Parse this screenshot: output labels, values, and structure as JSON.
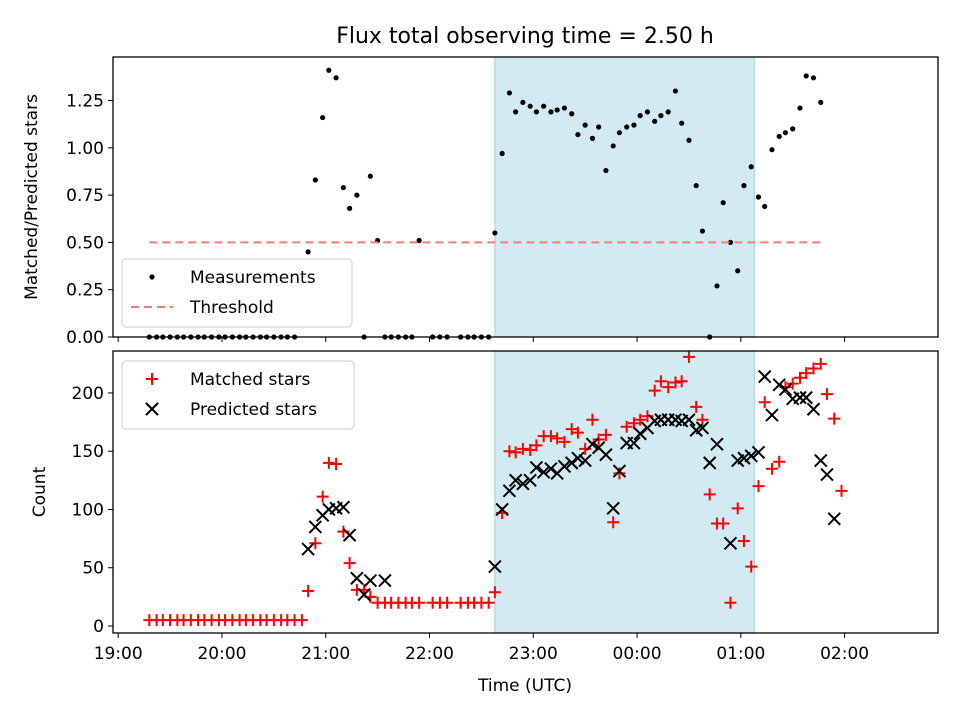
{
  "chart_data": [
    {
      "type": "scatter",
      "title": "Flux total observing time = 2.50 h",
      "xlabel": "",
      "ylabel": "Matched/Predicted stars",
      "xlim": [
        -0.05,
        7.9
      ],
      "ylim": [
        0,
        1.48
      ],
      "yticks": [
        "0.00",
        "0.25",
        "0.50",
        "0.75",
        "1.00",
        "1.25"
      ],
      "ytick_values": [
        0,
        0.25,
        0.5,
        0.75,
        1.0,
        1.25
      ],
      "shaded_span": [
        3.63,
        6.13
      ],
      "legend_position": "lower-left",
      "series": [
        {
          "name": "Measurements",
          "color": "#000000",
          "marker": "dot",
          "points": [
            [
              0.3,
              0
            ],
            [
              0.37,
              0
            ],
            [
              0.43,
              0
            ],
            [
              0.5,
              0
            ],
            [
              0.57,
              0
            ],
            [
              0.63,
              0
            ],
            [
              0.7,
              0
            ],
            [
              0.77,
              0
            ],
            [
              0.83,
              0
            ],
            [
              0.9,
              0
            ],
            [
              0.97,
              0
            ],
            [
              1.03,
              0
            ],
            [
              1.1,
              0
            ],
            [
              1.17,
              0
            ],
            [
              1.23,
              0
            ],
            [
              1.3,
              0
            ],
            [
              1.37,
              0
            ],
            [
              1.43,
              0
            ],
            [
              1.5,
              0
            ],
            [
              1.57,
              0
            ],
            [
              1.63,
              0
            ],
            [
              1.7,
              0
            ],
            [
              1.83,
              0.45
            ],
            [
              1.9,
              0.83
            ],
            [
              1.97,
              1.16
            ],
            [
              2.03,
              1.41
            ],
            [
              2.1,
              1.37
            ],
            [
              2.17,
              0.79
            ],
            [
              2.23,
              0.68
            ],
            [
              2.3,
              0.75
            ],
            [
              2.37,
              0
            ],
            [
              2.43,
              0.85
            ],
            [
              2.5,
              0.51
            ],
            [
              2.57,
              0
            ],
            [
              2.63,
              0
            ],
            [
              2.7,
              0
            ],
            [
              2.77,
              0
            ],
            [
              2.83,
              0
            ],
            [
              2.9,
              0.51
            ],
            [
              3.03,
              0
            ],
            [
              3.1,
              0
            ],
            [
              3.17,
              0
            ],
            [
              3.3,
              0
            ],
            [
              3.37,
              0
            ],
            [
              3.43,
              0
            ],
            [
              3.5,
              0
            ],
            [
              3.57,
              0
            ],
            [
              3.63,
              0.55
            ],
            [
              3.7,
              0.97
            ],
            [
              3.77,
              1.29
            ],
            [
              3.83,
              1.19
            ],
            [
              3.9,
              1.24
            ],
            [
              3.97,
              1.22
            ],
            [
              4.03,
              1.19
            ],
            [
              4.1,
              1.22
            ],
            [
              4.17,
              1.19
            ],
            [
              4.23,
              1.2
            ],
            [
              4.3,
              1.21
            ],
            [
              4.37,
              1.18
            ],
            [
              4.43,
              1.07
            ],
            [
              4.5,
              1.12
            ],
            [
              4.57,
              1.05
            ],
            [
              4.63,
              1.11
            ],
            [
              4.7,
              0.88
            ],
            [
              4.77,
              1.01
            ],
            [
              4.83,
              1.08
            ],
            [
              4.9,
              1.11
            ],
            [
              4.97,
              1.12
            ],
            [
              5.03,
              1.17
            ],
            [
              5.1,
              1.19
            ],
            [
              5.17,
              1.14
            ],
            [
              5.23,
              1.17
            ],
            [
              5.3,
              1.19
            ],
            [
              5.37,
              1.3
            ],
            [
              5.43,
              1.13
            ],
            [
              5.5,
              1.04
            ],
            [
              5.57,
              0.8
            ],
            [
              5.63,
              0.56
            ],
            [
              5.7,
              0
            ],
            [
              5.77,
              0.27
            ],
            [
              5.83,
              0.71
            ],
            [
              5.9,
              0.5
            ],
            [
              5.97,
              0.35
            ],
            [
              6.03,
              0.8
            ],
            [
              6.1,
              0.9
            ],
            [
              6.17,
              0.74
            ],
            [
              6.23,
              0.69
            ],
            [
              6.3,
              0.99
            ],
            [
              6.37,
              1.06
            ],
            [
              6.43,
              1.08
            ],
            [
              6.5,
              1.1
            ],
            [
              6.57,
              1.21
            ],
            [
              6.63,
              1.38
            ],
            [
              6.7,
              1.37
            ],
            [
              6.77,
              1.24
            ]
          ]
        },
        {
          "name": "Threshold",
          "color": "#ff7777",
          "marker": "dashed-line",
          "points": [
            [
              0.3,
              0.5
            ],
            [
              6.77,
              0.5
            ]
          ]
        }
      ]
    },
    {
      "type": "scatter",
      "title": "",
      "xlabel": "Time (UTC)",
      "ylabel": "Count",
      "xlim": [
        -0.05,
        7.9
      ],
      "ylim": [
        -6,
        236
      ],
      "yticks": [
        "0",
        "50",
        "100",
        "150",
        "200"
      ],
      "ytick_values": [
        0,
        50,
        100,
        150,
        200
      ],
      "xticks": [
        "19:00",
        "20:00",
        "21:00",
        "22:00",
        "23:00",
        "00:00",
        "01:00",
        "02:00"
      ],
      "xtick_values": [
        0,
        1,
        2,
        3,
        4,
        5,
        6,
        7
      ],
      "shaded_span": [
        3.63,
        6.13
      ],
      "legend_position": "upper-left",
      "series": [
        {
          "name": "Matched stars",
          "color": "#ff0000",
          "marker": "plus",
          "points": [
            [
              0.3,
              5
            ],
            [
              0.37,
              5
            ],
            [
              0.43,
              5
            ],
            [
              0.5,
              5
            ],
            [
              0.57,
              5
            ],
            [
              0.63,
              5
            ],
            [
              0.7,
              5
            ],
            [
              0.77,
              5
            ],
            [
              0.83,
              5
            ],
            [
              0.9,
              5
            ],
            [
              0.97,
              5
            ],
            [
              1.03,
              5
            ],
            [
              1.1,
              5
            ],
            [
              1.17,
              5
            ],
            [
              1.23,
              5
            ],
            [
              1.3,
              5
            ],
            [
              1.37,
              5
            ],
            [
              1.43,
              5
            ],
            [
              1.5,
              5
            ],
            [
              1.57,
              5
            ],
            [
              1.63,
              5
            ],
            [
              1.7,
              5
            ],
            [
              1.77,
              5
            ],
            [
              1.83,
              30
            ],
            [
              1.9,
              71
            ],
            [
              1.97,
              111
            ],
            [
              2.03,
              140
            ],
            [
              2.1,
              139
            ],
            [
              2.17,
              81
            ],
            [
              2.23,
              54
            ],
            [
              2.3,
              31
            ],
            [
              2.37,
              31
            ],
            [
              2.43,
              25
            ],
            [
              2.5,
              20
            ],
            [
              2.57,
              20
            ],
            [
              2.63,
              20
            ],
            [
              2.7,
              20
            ],
            [
              2.77,
              20
            ],
            [
              2.83,
              20
            ],
            [
              2.9,
              20
            ],
            [
              3.03,
              20
            ],
            [
              3.1,
              20
            ],
            [
              3.17,
              20
            ],
            [
              3.3,
              20
            ],
            [
              3.37,
              20
            ],
            [
              3.43,
              20
            ],
            [
              3.5,
              20
            ],
            [
              3.57,
              20
            ],
            [
              3.63,
              29
            ],
            [
              3.7,
              97
            ],
            [
              3.77,
              150
            ],
            [
              3.83,
              149
            ],
            [
              3.9,
              152
            ],
            [
              3.97,
              151
            ],
            [
              4.03,
              155
            ],
            [
              4.1,
              163
            ],
            [
              4.17,
              163
            ],
            [
              4.23,
              161
            ],
            [
              4.3,
              158
            ],
            [
              4.37,
              169
            ],
            [
              4.43,
              166
            ],
            [
              4.5,
              152
            ],
            [
              4.57,
              177
            ],
            [
              4.63,
              160
            ],
            [
              4.7,
              164
            ],
            [
              4.77,
              89
            ],
            [
              4.83,
              131
            ],
            [
              4.9,
              171
            ],
            [
              4.97,
              174
            ],
            [
              5.03,
              177
            ],
            [
              5.1,
              180
            ],
            [
              5.17,
              202
            ],
            [
              5.23,
              210
            ],
            [
              5.3,
              205
            ],
            [
              5.37,
              209
            ],
            [
              5.43,
              210
            ],
            [
              5.5,
              231
            ],
            [
              5.57,
              188
            ],
            [
              5.63,
              177
            ],
            [
              5.7,
              113
            ],
            [
              5.77,
              88
            ],
            [
              5.83,
              88
            ],
            [
              5.9,
              20
            ],
            [
              5.97,
              101
            ],
            [
              6.03,
              73
            ],
            [
              6.1,
              51
            ],
            [
              6.17,
              120
            ],
            [
              6.23,
              192
            ],
            [
              6.3,
              135
            ],
            [
              6.37,
              141
            ],
            [
              6.43,
              205
            ],
            [
              6.5,
              208
            ],
            [
              6.57,
              213
            ],
            [
              6.63,
              217
            ],
            [
              6.7,
              221
            ],
            [
              6.77,
              225
            ],
            [
              6.83,
              199
            ],
            [
              6.9,
              178
            ],
            [
              6.97,
              116
            ]
          ]
        },
        {
          "name": "Predicted stars",
          "color": "#000000",
          "marker": "x",
          "points": [
            [
              1.83,
              66
            ],
            [
              1.9,
              85
            ],
            [
              1.97,
              95
            ],
            [
              2.03,
              100
            ],
            [
              2.1,
              101
            ],
            [
              2.17,
              102
            ],
            [
              2.23,
              78
            ],
            [
              2.3,
              41
            ],
            [
              2.37,
              27
            ],
            [
              2.43,
              39
            ],
            [
              2.57,
              39
            ],
            [
              3.63,
              51
            ],
            [
              3.7,
              100
            ],
            [
              3.77,
              116
            ],
            [
              3.83,
              125
            ],
            [
              3.9,
              122
            ],
            [
              3.97,
              125
            ],
            [
              4.03,
              136
            ],
            [
              4.1,
              132
            ],
            [
              4.17,
              135
            ],
            [
              4.23,
              131
            ],
            [
              4.3,
              137
            ],
            [
              4.37,
              140
            ],
            [
              4.43,
              144
            ],
            [
              4.5,
              142
            ],
            [
              4.57,
              156
            ],
            [
              4.63,
              153
            ],
            [
              4.7,
              147
            ],
            [
              4.77,
              101
            ],
            [
              4.83,
              133
            ],
            [
              4.9,
              157
            ],
            [
              4.97,
              157
            ],
            [
              5.03,
              165
            ],
            [
              5.1,
              170
            ],
            [
              5.17,
              176
            ],
            [
              5.23,
              177
            ],
            [
              5.3,
              177
            ],
            [
              5.37,
              177
            ],
            [
              5.43,
              176
            ],
            [
              5.5,
              177
            ],
            [
              5.57,
              168
            ],
            [
              5.63,
              170
            ],
            [
              5.7,
              140
            ],
            [
              5.77,
              156
            ],
            [
              5.9,
              71
            ],
            [
              5.97,
              142
            ],
            [
              6.03,
              144
            ],
            [
              6.1,
              146
            ],
            [
              6.17,
              149
            ],
            [
              6.23,
              214
            ],
            [
              6.3,
              181
            ],
            [
              6.37,
              207
            ],
            [
              6.43,
              203
            ],
            [
              6.5,
              195
            ],
            [
              6.57,
              196
            ],
            [
              6.63,
              196
            ],
            [
              6.7,
              186
            ],
            [
              6.77,
              142
            ],
            [
              6.83,
              130
            ],
            [
              6.9,
              92
            ]
          ]
        }
      ]
    }
  ]
}
